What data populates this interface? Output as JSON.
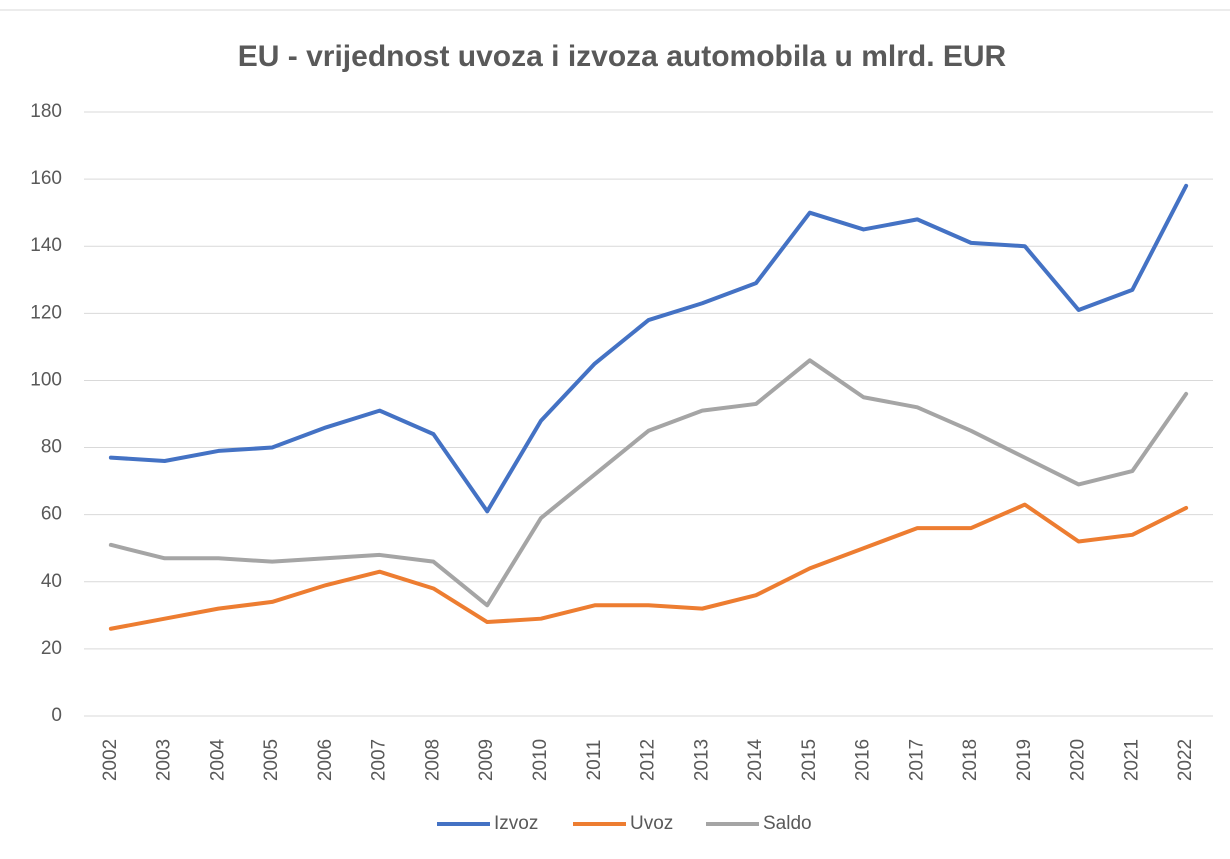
{
  "chart_data": {
    "type": "line",
    "title": "EU - vrijednost uvoza i izvoza automobila u mlrd. EUR",
    "categories": [
      "2002",
      "2003",
      "2004",
      "2005",
      "2006",
      "2007",
      "2008",
      "2009",
      "2010",
      "2011",
      "2012",
      "2013",
      "2014",
      "2015",
      "2016",
      "2017",
      "2018",
      "2019",
      "2020",
      "2021",
      "2022"
    ],
    "series": [
      {
        "name": "Izvoz",
        "color": "#4472c4",
        "values": [
          77,
          76,
          79,
          80,
          86,
          91,
          84,
          61,
          88,
          105,
          118,
          123,
          129,
          150,
          145,
          148,
          141,
          140,
          121,
          127,
          158
        ]
      },
      {
        "name": "Uvoz",
        "color": "#ed7d31",
        "values": [
          26,
          29,
          32,
          34,
          39,
          43,
          38,
          28,
          29,
          33,
          33,
          32,
          36,
          44,
          50,
          56,
          56,
          63,
          52,
          54,
          62
        ]
      },
      {
        "name": "Saldo",
        "color": "#a5a5a5",
        "values": [
          51,
          47,
          47,
          46,
          47,
          48,
          46,
          33,
          59,
          72,
          85,
          91,
          93,
          106,
          95,
          92,
          85,
          77,
          69,
          73,
          96
        ]
      }
    ],
    "ylim": [
      0,
      180
    ],
    "yticks": [
      0,
      20,
      40,
      60,
      80,
      100,
      120,
      140,
      160,
      180
    ],
    "grid": true,
    "legend": "bottom"
  }
}
